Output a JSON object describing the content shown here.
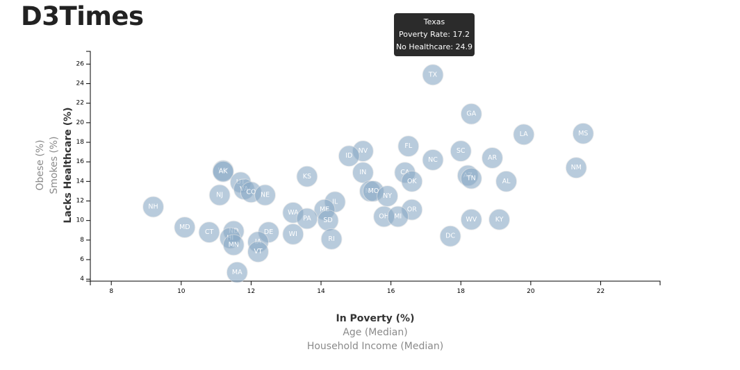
{
  "page": {
    "title": "D3Times"
  },
  "tooltip": {
    "state": "Texas",
    "line1": "Poverty Rate: 17.2",
    "line2": "No Healthcare: 24.9"
  },
  "chart_data": {
    "type": "scatter",
    "x_axis": {
      "active_label": "In Poverty (%)",
      "inactive_labels": [
        "Age (Median)",
        "Household Income (Median)"
      ],
      "range": [
        7.4,
        23.7
      ],
      "ticks": [
        8,
        10,
        12,
        14,
        16,
        18,
        20,
        22
      ]
    },
    "y_axis": {
      "active_label": "Lacks Healthcare (%)",
      "inactive_labels": [
        "Smokes (%)",
        "Obese (%)"
      ],
      "range": [
        3.8,
        27.3
      ],
      "ticks": [
        4,
        6,
        8,
        10,
        12,
        14,
        16,
        18,
        20,
        22,
        24,
        26
      ]
    },
    "grid": false,
    "points": [
      {
        "abbr": "TX",
        "x": 17.2,
        "y": 24.9
      },
      {
        "abbr": "GA",
        "x": 18.3,
        "y": 20.9
      },
      {
        "abbr": "LA",
        "x": 19.8,
        "y": 18.8
      },
      {
        "abbr": "MS",
        "x": 21.5,
        "y": 18.9
      },
      {
        "abbr": "FL",
        "x": 16.5,
        "y": 17.6
      },
      {
        "abbr": "NV",
        "x": 15.2,
        "y": 17.1
      },
      {
        "abbr": "ID",
        "x": 14.8,
        "y": 16.6
      },
      {
        "abbr": "SC",
        "x": 18.0,
        "y": 17.1
      },
      {
        "abbr": "NC",
        "x": 17.2,
        "y": 16.2
      },
      {
        "abbr": "AR",
        "x": 18.9,
        "y": 16.4
      },
      {
        "abbr": "NM",
        "x": 21.3,
        "y": 15.4
      },
      {
        "abbr": "CA",
        "x": 16.4,
        "y": 14.9
      },
      {
        "abbr": "IN",
        "x": 15.2,
        "y": 14.9
      },
      {
        "abbr": "OK",
        "x": 16.6,
        "y": 14.0
      },
      {
        "abbr": "AZ",
        "x": 18.2,
        "y": 14.6
      },
      {
        "abbr": "TN",
        "x": 18.3,
        "y": 14.3
      },
      {
        "abbr": "AL",
        "x": 19.3,
        "y": 14.0
      },
      {
        "abbr": "KS",
        "x": 13.6,
        "y": 14.5
      },
      {
        "abbr": "WY",
        "x": 11.2,
        "y": 15.1
      },
      {
        "abbr": "AK",
        "x": 11.2,
        "y": 15.0
      },
      {
        "abbr": "UT",
        "x": 11.7,
        "y": 13.9
      },
      {
        "abbr": "VA",
        "x": 11.8,
        "y": 13.2
      },
      {
        "abbr": "CO",
        "x": 12.0,
        "y": 12.9
      },
      {
        "abbr": "NE",
        "x": 12.4,
        "y": 12.6
      },
      {
        "abbr": "NJ",
        "x": 11.1,
        "y": 12.6
      },
      {
        "abbr": "MT",
        "x": 15.4,
        "y": 13.0
      },
      {
        "abbr": "MO",
        "x": 15.5,
        "y": 13.0
      },
      {
        "abbr": "NY",
        "x": 15.9,
        "y": 12.5
      },
      {
        "abbr": "IL",
        "x": 14.4,
        "y": 11.9
      },
      {
        "abbr": "NH",
        "x": 9.2,
        "y": 11.4
      },
      {
        "abbr": "ME",
        "x": 14.1,
        "y": 11.1
      },
      {
        "abbr": "OR",
        "x": 16.6,
        "y": 11.1
      },
      {
        "abbr": "WA",
        "x": 13.2,
        "y": 10.8
      },
      {
        "abbr": "PA",
        "x": 13.6,
        "y": 10.2
      },
      {
        "abbr": "SD",
        "x": 14.2,
        "y": 10.0
      },
      {
        "abbr": "OH",
        "x": 15.8,
        "y": 10.4
      },
      {
        "abbr": "MI",
        "x": 16.2,
        "y": 10.4
      },
      {
        "abbr": "WV",
        "x": 18.3,
        "y": 10.1
      },
      {
        "abbr": "KY",
        "x": 19.1,
        "y": 10.1
      },
      {
        "abbr": "MD",
        "x": 10.1,
        "y": 9.3
      },
      {
        "abbr": "CT",
        "x": 10.8,
        "y": 8.8
      },
      {
        "abbr": "ND",
        "x": 11.5,
        "y": 8.9
      },
      {
        "abbr": "HI",
        "x": 11.4,
        "y": 8.2
      },
      {
        "abbr": "DE",
        "x": 12.5,
        "y": 8.8
      },
      {
        "abbr": "WI",
        "x": 13.2,
        "y": 8.6
      },
      {
        "abbr": "RI",
        "x": 14.3,
        "y": 8.1
      },
      {
        "abbr": "DC",
        "x": 17.7,
        "y": 8.4
      },
      {
        "abbr": "IA",
        "x": 12.2,
        "y": 7.8
      },
      {
        "abbr": "MN",
        "x": 11.5,
        "y": 7.5
      },
      {
        "abbr": "VT",
        "x": 12.2,
        "y": 6.8
      },
      {
        "abbr": "MA",
        "x": 11.6,
        "y": 4.7
      }
    ]
  }
}
